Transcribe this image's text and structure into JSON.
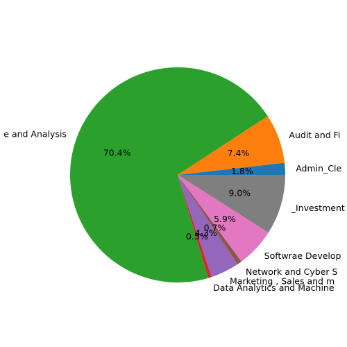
{
  "chart_data": {
    "type": "pie",
    "title": "",
    "start_angle_deg": 0,
    "direction": "counterclockwise",
    "legend": "none",
    "slices": [
      {
        "label": "Admin_Cle",
        "value": 1.8,
        "pct_label": "1.8%",
        "color": "#1f77b4"
      },
      {
        "label": "Audit and Fi",
        "value": 7.4,
        "pct_label": "7.4%",
        "color": "#ff7f0e"
      },
      {
        "label": "e and Analysis",
        "value": 70.4,
        "pct_label": "70.4%",
        "color": "#2ca02c"
      },
      {
        "label": "Data Analytics and Machine",
        "value": 0.5,
        "pct_label": "0.5%",
        "color": "#d62728"
      },
      {
        "label": "Marketing , Sales and m",
        "value": 4.3,
        "pct_label": "4.3%",
        "color": "#9467bd"
      },
      {
        "label": "Network and Cyber S",
        "value": 0.7,
        "pct_label": "0.7%",
        "color": "#8c564b"
      },
      {
        "label": "Softwrae Develop",
        "value": 5.9,
        "pct_label": "5.9%",
        "color": "#e377c2"
      },
      {
        "label": "_Investment",
        "value": 9.0,
        "pct_label": "9.0%",
        "color": "#7f7f7f"
      }
    ]
  }
}
